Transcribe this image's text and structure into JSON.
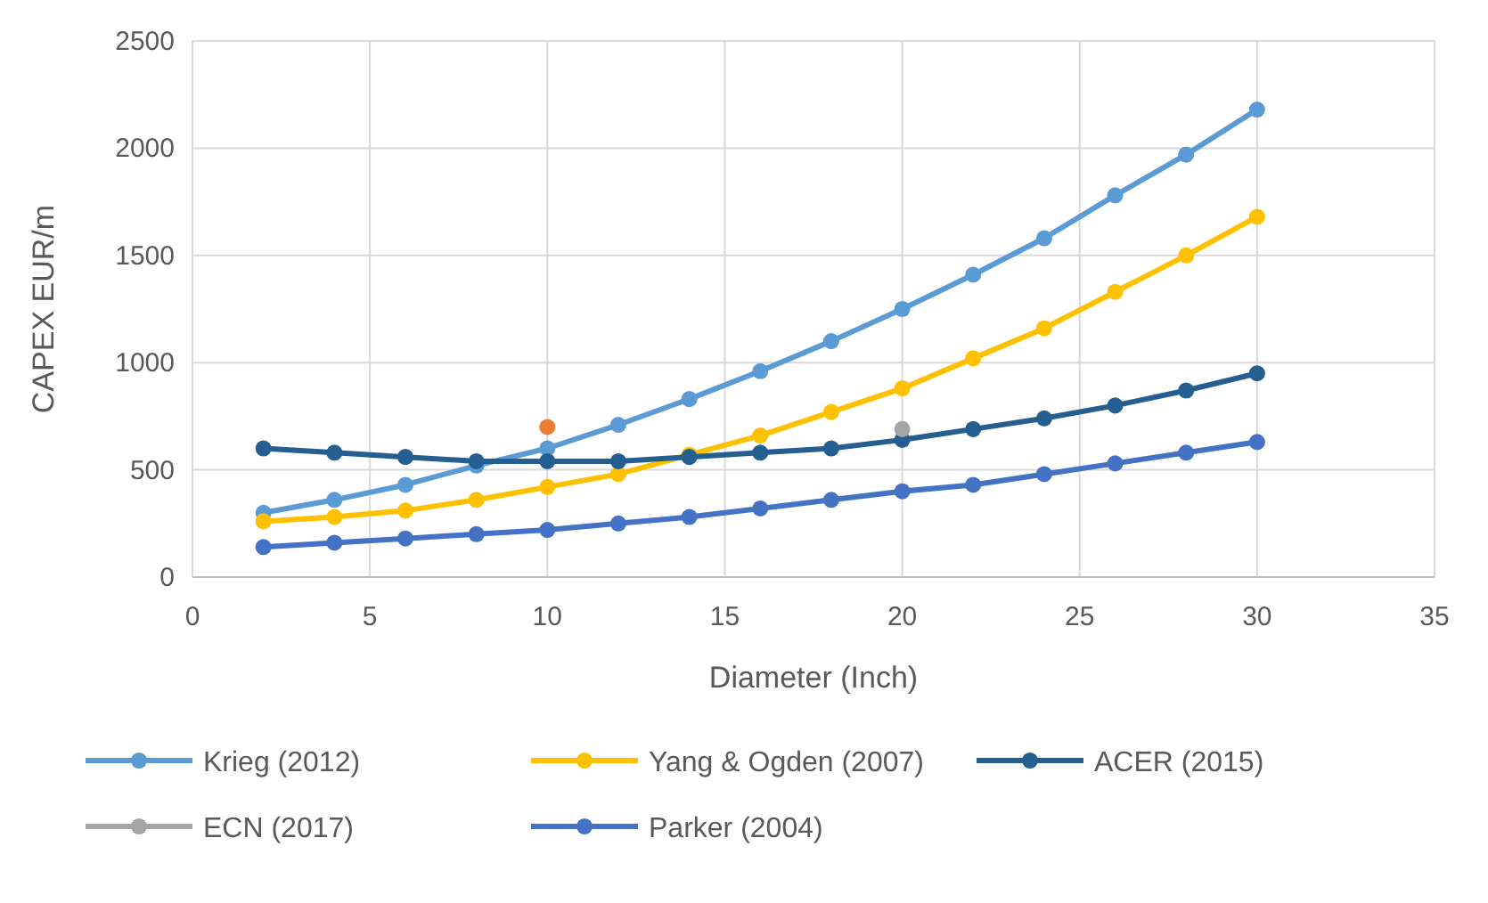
{
  "chart_data": {
    "type": "line",
    "xlabel": "Diameter (Inch)",
    "ylabel": "CAPEX EUR/m",
    "x": [
      2,
      4,
      6,
      8,
      10,
      12,
      14,
      16,
      18,
      20,
      22,
      24,
      26,
      28,
      30
    ],
    "series": [
      {
        "name": "Krieg (2012)",
        "color": "#5b9bd5",
        "values": [
          300,
          360,
          430,
          520,
          600,
          710,
          830,
          960,
          1100,
          1250,
          1410,
          1580,
          1780,
          1970,
          2180
        ]
      },
      {
        "name": "Yang & Ogden (2007)",
        "color": "#ffc000",
        "values": [
          260,
          280,
          310,
          360,
          420,
          480,
          570,
          660,
          770,
          880,
          1020,
          1160,
          1330,
          1500,
          1680
        ]
      },
      {
        "name": "ACER (2015)",
        "color": "#255e91",
        "values": [
          600,
          580,
          560,
          540,
          540,
          540,
          560,
          580,
          600,
          640,
          690,
          740,
          800,
          870,
          950
        ]
      },
      {
        "color": "#ed7d31",
        "x": [
          10
        ],
        "values": [
          700
        ]
      },
      {
        "name": "ECN (2017)",
        "color": "#a5a5a5",
        "x": [
          20
        ],
        "values": [
          690
        ]
      },
      {
        "name": "Parker (2004)",
        "color": "#4472c4",
        "values": [
          140,
          160,
          180,
          200,
          220,
          250,
          280,
          320,
          360,
          400,
          430,
          480,
          530,
          580,
          630
        ]
      }
    ],
    "xlim": [
      0,
      35
    ],
    "xticks": [
      0,
      5,
      10,
      15,
      20,
      25,
      30,
      35
    ],
    "ylim": [
      0,
      2500
    ],
    "yticks": [
      0,
      500,
      1000,
      1500,
      2000,
      2500
    ],
    "grid": true,
    "legend": "bottom",
    "marker": "circle",
    "line_style": "solid"
  }
}
